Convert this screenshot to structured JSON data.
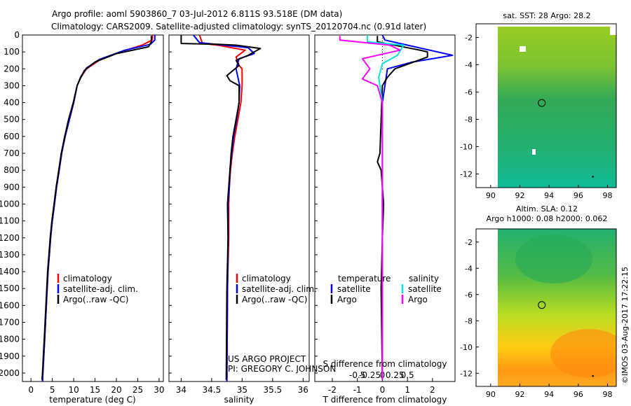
{
  "header": {
    "line1": "Argo profile: aoml 5903860_7 03-Jul-2012 6.811S 93.518E (DM data)",
    "line2": "Climatology: CARS2009. Satellite-adjusted climatology: synTS_20120704.nc (0.91d later)"
  },
  "colors": {
    "climatology": "#ff0000",
    "satellite": "#0000ff",
    "argo": "#000000",
    "sat_s": "#00e5e5",
    "argo_s": "#ff00ff"
  },
  "panels": {
    "temperature": {
      "xlabel": "temperature (deg C)",
      "legend": [
        "climatology",
        "satellite-adj. clim.",
        "Argo(..raw -QC)"
      ]
    },
    "salinity": {
      "xlabel": "salinity",
      "legend": [
        "climatology",
        "satellite-adj. clim.",
        "Argo(..raw -QC)"
      ],
      "note1": "US ARGO PROJECT",
      "note2": "PI: GREGORY C. JOHNSON"
    },
    "difference": {
      "xlabel_top": "S difference from climatology",
      "xlabel": "T difference from climatology",
      "legend_head_t": "temperature",
      "legend_head_s": "salinity",
      "legend_t": [
        "satellite",
        "Argo"
      ],
      "legend_s": [
        "satellite",
        "Argo"
      ]
    }
  },
  "maps": {
    "sst_title": "sat. SST: 28 Argo: 28.2",
    "sla_title1": "Altim. SLA: 0.12",
    "sla_title2": "Argo h1000: 0.08 h2000: 0.062",
    "xticks": [
      "90",
      "92",
      "94",
      "96",
      "98"
    ],
    "yticks_sst": [
      "-2",
      "-4",
      "-6",
      "-8",
      "-10",
      "-12"
    ],
    "yticks_sla": [
      "-2",
      "-4",
      "-6",
      "-8",
      "-10",
      "-12"
    ]
  },
  "footer": {
    "stamp": "©IMOS 03-Aug-2017 17:22:15"
  },
  "chart_data": [
    {
      "type": "line",
      "title": "",
      "xlabel": "temperature (deg C)",
      "ylabel": "",
      "xlim": [
        -2,
        31
      ],
      "ylim": [
        2050,
        0
      ],
      "xticks": [
        0,
        5,
        10,
        15,
        20,
        25,
        30
      ],
      "yticks": [
        0,
        100,
        200,
        300,
        400,
        500,
        600,
        700,
        800,
        900,
        1000,
        1100,
        1200,
        1300,
        1400,
        1500,
        1600,
        1700,
        1800,
        1900,
        2000
      ],
      "series": [
        {
          "name": "climatology",
          "color": "#ff0000",
          "points": [
            [
              28.5,
              0
            ],
            [
              28.4,
              30
            ],
            [
              26,
              60
            ],
            [
              21,
              100
            ],
            [
              16,
              150
            ],
            [
              13,
              200
            ],
            [
              11.7,
              250
            ],
            [
              10.8,
              300
            ],
            [
              10,
              400
            ],
            [
              9,
              500
            ],
            [
              8,
              600
            ],
            [
              7.2,
              700
            ],
            [
              6.6,
              800
            ],
            [
              6,
              900
            ],
            [
              5.5,
              1000
            ],
            [
              5,
              1100
            ],
            [
              4.6,
              1200
            ],
            [
              4.3,
              1300
            ],
            [
              4,
              1400
            ],
            [
              3.8,
              1500
            ],
            [
              3.6,
              1600
            ],
            [
              3.4,
              1700
            ],
            [
              3.2,
              1800
            ],
            [
              3,
              1900
            ],
            [
              2.8,
              2000
            ],
            [
              2.7,
              2050
            ]
          ]
        },
        {
          "name": "satellite-adj. clim.",
          "color": "#0000ff",
          "points": [
            [
              29,
              0
            ],
            [
              29,
              30
            ],
            [
              28,
              55
            ],
            [
              22,
              90
            ],
            [
              16,
              145
            ],
            [
              13,
              195
            ],
            [
              11.7,
              245
            ],
            [
              10.8,
              300
            ],
            [
              10,
              400
            ],
            [
              9,
              500
            ],
            [
              8,
              600
            ],
            [
              7.2,
              700
            ],
            [
              6.6,
              800
            ],
            [
              6,
              900
            ],
            [
              5.5,
              1000
            ],
            [
              5,
              1100
            ],
            [
              4.6,
              1200
            ],
            [
              4.3,
              1300
            ],
            [
              4,
              1400
            ],
            [
              3.8,
              1500
            ],
            [
              3.6,
              1600
            ],
            [
              3.4,
              1700
            ],
            [
              3.2,
              1800
            ],
            [
              3,
              1900
            ],
            [
              2.8,
              2000
            ],
            [
              2.7,
              2050
            ]
          ]
        },
        {
          "name": "Argo(..raw -QC)",
          "color": "#000000",
          "points": [
            [
              28.2,
              5
            ],
            [
              28.2,
              40
            ],
            [
              27.5,
              70
            ],
            [
              20,
              110
            ],
            [
              15,
              160
            ],
            [
              12.5,
              210
            ],
            [
              11.5,
              260
            ],
            [
              10.8,
              300
            ],
            [
              9.9,
              400
            ],
            [
              8.8,
              500
            ],
            [
              7.9,
              600
            ],
            [
              7.1,
              700
            ],
            [
              6.5,
              800
            ],
            [
              5.9,
              900
            ],
            [
              5.4,
              1000
            ],
            [
              4.9,
              1100
            ],
            [
              4.5,
              1200
            ],
            [
              4.2,
              1300
            ],
            [
              3.9,
              1400
            ],
            [
              3.7,
              1500
            ],
            [
              3.5,
              1600
            ],
            [
              3.3,
              1700
            ],
            [
              3.1,
              1800
            ],
            [
              2.9,
              1900
            ],
            [
              2.7,
              2000
            ],
            [
              2.6,
              2040
            ]
          ]
        }
      ]
    },
    {
      "type": "line",
      "title": "",
      "xlabel": "salinity",
      "ylabel": "",
      "xlim": [
        33.8,
        36.1
      ],
      "ylim": [
        2050,
        0
      ],
      "xticks": [
        34,
        34.5,
        35,
        35.5,
        36
      ],
      "series": [
        {
          "name": "climatology",
          "color": "#ff0000",
          "points": [
            [
              34.3,
              0
            ],
            [
              34.35,
              50
            ],
            [
              34.6,
              60
            ],
            [
              35.05,
              90
            ],
            [
              34.9,
              130
            ],
            [
              34.95,
              180
            ],
            [
              35.0,
              200
            ],
            [
              35.0,
              300
            ],
            [
              34.98,
              400
            ],
            [
              34.93,
              500
            ],
            [
              34.88,
              600
            ],
            [
              34.84,
              700
            ],
            [
              34.81,
              800
            ],
            [
              34.79,
              900
            ],
            [
              34.78,
              1000
            ],
            [
              34.78,
              1200
            ],
            [
              34.76,
              1500
            ],
            [
              34.75,
              2050
            ]
          ]
        },
        {
          "name": "satellite-adj. clim.",
          "color": "#0000ff",
          "points": [
            [
              34.2,
              0
            ],
            [
              34.3,
              45
            ],
            [
              35.1,
              75
            ],
            [
              35.2,
              110
            ],
            [
              34.95,
              140
            ],
            [
              34.9,
              200
            ],
            [
              34.96,
              300
            ],
            [
              34.95,
              400
            ],
            [
              34.91,
              500
            ],
            [
              34.86,
              600
            ],
            [
              34.83,
              700
            ],
            [
              34.8,
              800
            ],
            [
              34.79,
              900
            ],
            [
              34.77,
              1000
            ],
            [
              34.77,
              1200
            ],
            [
              34.76,
              1500
            ],
            [
              34.75,
              2050
            ]
          ]
        },
        {
          "name": "Argo(..raw -QC)",
          "color": "#000000",
          "points": [
            [
              34.0,
              0
            ],
            [
              34.0,
              50
            ],
            [
              34.6,
              55
            ],
            [
              34.9,
              60
            ],
            [
              35.3,
              80
            ],
            [
              35.1,
              120
            ],
            [
              34.9,
              150
            ],
            [
              34.95,
              180
            ],
            [
              34.75,
              240
            ],
            [
              34.8,
              270
            ],
            [
              34.95,
              300
            ],
            [
              34.95,
              400
            ],
            [
              34.9,
              500
            ],
            [
              34.85,
              600
            ],
            [
              34.82,
              700
            ],
            [
              34.8,
              800
            ],
            [
              34.78,
              900
            ],
            [
              34.76,
              1000
            ],
            [
              34.77,
              1200
            ],
            [
              34.75,
              1500
            ],
            [
              34.74,
              2040
            ]
          ]
        }
      ]
    },
    {
      "type": "line",
      "title": "",
      "xlabel": "T difference from climatology",
      "x2label": "S difference from climatology",
      "ylabel": "",
      "xlim": [
        -2.7,
        2.9
      ],
      "ylim": [
        2050,
        0
      ],
      "xticks": [
        -2,
        -1,
        0,
        1,
        2
      ],
      "x2ticks": [
        -0.5,
        -0.25,
        0,
        0.25,
        0.5
      ],
      "series": [
        {
          "name": "temperature satellite",
          "color": "#0000ff",
          "points": [
            [
              0,
              0
            ],
            [
              0.1,
              30
            ],
            [
              1,
              60
            ],
            [
              2.8,
              120
            ],
            [
              1.2,
              160
            ],
            [
              0.2,
              200
            ],
            [
              0.1,
              300
            ],
            [
              0,
              400
            ],
            [
              0,
              700
            ],
            [
              0,
              1000
            ],
            [
              0,
              2040
            ]
          ]
        },
        {
          "name": "temperature Argo",
          "color": "#000000",
          "points": [
            [
              -0.2,
              5
            ],
            [
              -0.2,
              40
            ],
            [
              1.5,
              90
            ],
            [
              1.8,
              100
            ],
            [
              1.8,
              130
            ],
            [
              0.5,
              200
            ],
            [
              0.2,
              250
            ],
            [
              0,
              300
            ],
            [
              -0.05,
              500
            ],
            [
              -0.1,
              700
            ],
            [
              -0.2,
              750
            ],
            [
              -0.05,
              800
            ],
            [
              0,
              900
            ],
            [
              0.05,
              1000
            ],
            [
              0,
              1200
            ],
            [
              -0.05,
              1500
            ],
            [
              0,
              2040
            ]
          ]
        },
        {
          "name": "salinity satellite",
          "color": "#00e5e5",
          "points": [
            [
              -0.6,
              0
            ],
            [
              -0.6,
              40
            ],
            [
              0.85,
              60
            ],
            [
              0.6,
              120
            ],
            [
              0,
              170
            ],
            [
              -0.15,
              250
            ],
            [
              -0.1,
              300
            ],
            [
              0,
              400
            ],
            [
              0,
              600
            ],
            [
              0,
              800
            ],
            [
              0,
              1200
            ],
            [
              0,
              2040
            ]
          ]
        },
        {
          "name": "salinity Argo",
          "color": "#ff00ff",
          "points": [
            [
              -1.7,
              5
            ],
            [
              -1.7,
              30
            ],
            [
              0.3,
              60
            ],
            [
              0.7,
              90
            ],
            [
              -0.8,
              140
            ],
            [
              -0.5,
              200
            ],
            [
              -0.8,
              260
            ],
            [
              -0.2,
              300
            ],
            [
              0,
              400
            ],
            [
              0,
              700
            ],
            [
              0,
              1000
            ],
            [
              0,
              2040
            ]
          ]
        }
      ]
    },
    {
      "type": "heatmap",
      "title": "sat. SST: 28 Argo: 28.2",
      "xlim": [
        89,
        98.6
      ],
      "ylim": [
        -13,
        -1
      ],
      "xticks": [
        90,
        92,
        94,
        96,
        98
      ],
      "yticks": [
        -2,
        -4,
        -6,
        -8,
        -10,
        -12
      ],
      "argo_marker": [
        93.5,
        -6.8
      ]
    },
    {
      "type": "heatmap",
      "title": "Altim. SLA: 0.12",
      "subtitle": "Argo h1000: 0.08 h2000: 0.062",
      "xlim": [
        89,
        98.6
      ],
      "ylim": [
        -13,
        -1
      ],
      "xticks": [
        90,
        92,
        94,
        96,
        98
      ],
      "yticks": [
        -2,
        -4,
        -6,
        -8,
        -10,
        -12
      ],
      "argo_marker": [
        93.5,
        -6.8
      ]
    }
  ]
}
